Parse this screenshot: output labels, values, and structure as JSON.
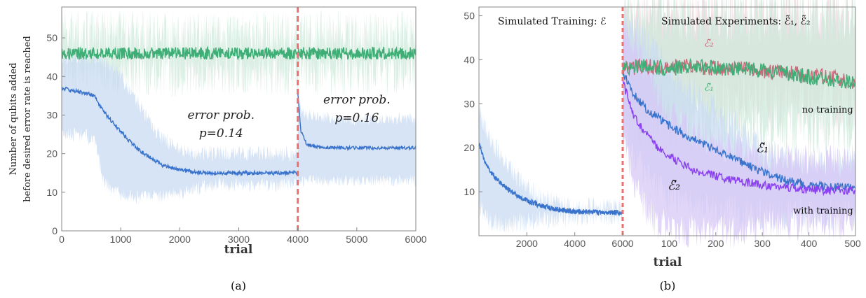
{
  "colors": {
    "blue_line": "#3a73cc",
    "blue_band": "#c9dbf2",
    "green_line": "#3fae76",
    "green_band": "#cfeadb",
    "purple_line": "#8a3ff0",
    "purple_band": "#d7c8f5",
    "red_line": "#c86a7a",
    "red_band": "#ecd5dc",
    "divider": "#ef6f6f"
  },
  "chart_data": [
    {
      "type": "line",
      "panel_caption": "(a)",
      "xlabel": "trial",
      "ylabel_lines": [
        "Number of qubits added",
        "before desired error rate is reached"
      ],
      "xlim": [
        0,
        6000
      ],
      "ylim": [
        0,
        58
      ],
      "xticks": [
        0,
        1000,
        2000,
        3000,
        4000,
        5000,
        6000
      ],
      "yticks": [
        0,
        10,
        20,
        30,
        40,
        50
      ],
      "grid": false,
      "vline_x": 4000,
      "annotations": [
        {
          "lines": [
            "error prob.",
            "p=0.14"
          ],
          "x": 2700,
          "y": 29
        },
        {
          "lines": [
            "error prob.",
            "p=0.16"
          ],
          "x": 5000,
          "y": 33
        }
      ],
      "series": [
        {
          "color_key": "green",
          "x": [
            0,
            1000,
            2000,
            3000,
            4000,
            5000,
            6000
          ],
          "y": [
            46,
            46,
            46,
            46,
            46,
            46,
            46
          ],
          "band_low": [
            41,
            41,
            41,
            41,
            41,
            41,
            41
          ],
          "band_high": [
            51,
            51,
            51,
            51,
            51,
            51,
            51
          ]
        },
        {
          "color_key": "blue",
          "x": [
            0,
            300,
            550,
            700,
            900,
            1100,
            1300,
            1500,
            1700,
            2000,
            2300,
            2600,
            3000,
            3500,
            3999,
            4000,
            4050,
            4150,
            4300,
            4600,
            5000,
            6000
          ],
          "y": [
            37,
            36,
            35,
            31,
            27.5,
            24,
            21,
            19,
            17,
            15.8,
            15.1,
            15,
            15,
            15,
            15,
            36,
            26,
            22.5,
            21.7,
            21.5,
            21.5,
            21.5
          ],
          "band_low": [
            25,
            25,
            24,
            13,
            10,
            9,
            8.5,
            8.5,
            9,
            10,
            11,
            12,
            12,
            12,
            12,
            13,
            13,
            13,
            13,
            13,
            13,
            13
          ],
          "band_high": [
            45,
            45,
            45,
            44,
            42,
            38,
            33,
            28,
            24,
            21,
            20,
            20,
            20,
            20,
            20,
            38,
            31,
            30,
            30,
            29,
            29,
            29
          ]
        }
      ]
    },
    {
      "type": "line",
      "panel_caption": "(b)",
      "xlabel": "trial",
      "xlim_left": [
        0,
        6000
      ],
      "xlim_right": [
        0,
        500
      ],
      "ylim": [
        0,
        52
      ],
      "xticks_left": [
        2000,
        4000,
        6000
      ],
      "xticks_right": [
        100,
        200,
        300,
        400,
        500
      ],
      "yticks": [
        10,
        20,
        30,
        40,
        50
      ],
      "grid": false,
      "headers": [
        "Simulated Training: ℰ",
        "Simulated Experiments: ℰ̃₁, ℰ̃₂"
      ],
      "series_labels": [
        {
          "text": "ℰ̃₂",
          "color_key": "red",
          "x": 185,
          "y": 43
        },
        {
          "text": "ℰ̃₁",
          "color_key": "green",
          "x": 185,
          "y": 33
        },
        {
          "text": "ℰ̃₁",
          "color_key": "black",
          "x": 300,
          "y": 19
        },
        {
          "text": "ℰ̃₂",
          "color_key": "black",
          "x": 110,
          "y": 10.5
        }
      ],
      "notes": [
        {
          "text": "no training",
          "x": 495,
          "y": 28
        },
        {
          "text": "with training",
          "x": 495,
          "y": 5
        }
      ],
      "training_series": {
        "color_key": "blue",
        "x": [
          0,
          300,
          700,
          1200,
          1800,
          2500,
          3200,
          4000,
          5000,
          6000
        ],
        "y": [
          21,
          16,
          13,
          10.5,
          8.5,
          7,
          6,
          5.5,
          5.3,
          5.3
        ],
        "band_low": [
          7,
          4,
          2.5,
          2.5,
          3,
          3.5,
          4,
          4.5,
          4.5,
          4.5
        ],
        "band_high": [
          28,
          24,
          20,
          16,
          12,
          9,
          7.5,
          6.5,
          6.5,
          6.5
        ]
      },
      "experiment_series": [
        {
          "color_key": "red",
          "x": [
            0,
            50,
            100,
            150,
            200,
            250,
            300,
            350,
            400,
            450,
            500
          ],
          "y": [
            38,
            38.5,
            38.5,
            38.5,
            38,
            38,
            37.5,
            37,
            36.5,
            36,
            35
          ],
          "band_low": [
            30,
            30,
            30,
            30,
            30,
            30,
            30,
            30,
            30,
            30,
            30
          ],
          "band_high": [
            50,
            50,
            50,
            50,
            50,
            50,
            50,
            50,
            50,
            50,
            50
          ]
        },
        {
          "color_key": "green",
          "x": [
            0,
            50,
            100,
            150,
            200,
            250,
            300,
            350,
            400,
            450,
            500
          ],
          "y": [
            38,
            38.5,
            38,
            38.5,
            38,
            38,
            37.5,
            37,
            36,
            35.5,
            35
          ],
          "band_low": [
            24,
            24,
            24,
            24,
            24,
            24,
            24,
            24,
            24,
            24,
            24
          ],
          "band_high": [
            50,
            50,
            50,
            50,
            50,
            50,
            50,
            50,
            50,
            50,
            50
          ]
        },
        {
          "color_key": "blue",
          "x": [
            0,
            25,
            50,
            75,
            100,
            150,
            200,
            250,
            300,
            350,
            400,
            450,
            500
          ],
          "y": [
            37,
            32,
            29,
            27,
            25,
            22,
            19.5,
            17,
            14.5,
            12.5,
            11.5,
            11,
            11
          ],
          "band_low": [
            26,
            18,
            14,
            11,
            9,
            7,
            6,
            5,
            5,
            5,
            5,
            5,
            5
          ],
          "band_high": [
            50,
            47,
            44,
            41,
            38,
            33,
            28,
            24,
            20,
            18,
            17,
            17,
            17
          ]
        },
        {
          "color_key": "purple",
          "x": [
            0,
            25,
            50,
            75,
            100,
            150,
            200,
            250,
            300,
            350,
            400,
            450,
            500
          ],
          "y": [
            35,
            27,
            23,
            20,
            18,
            15,
            13.5,
            12.5,
            11.5,
            11,
            10.5,
            10.3,
            10.3
          ],
          "band_low": [
            22,
            12,
            6,
            3,
            1.5,
            1,
            1,
            1,
            2,
            2.5,
            3,
            3,
            3
          ],
          "band_high": [
            50,
            44,
            38,
            32,
            28,
            24,
            21,
            19,
            18,
            17,
            17,
            17,
            17
          ]
        }
      ]
    }
  ]
}
